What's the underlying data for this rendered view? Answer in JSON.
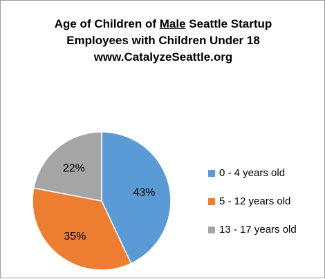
{
  "chart": {
    "title_line1_pre": "Age of Children of ",
    "title_line1_u": "Male",
    "title_line1_post": " Seattle Startup",
    "title_line2": "Employees with Children Under 18",
    "title_line3": "www.CatalyzeSeattle.org"
  },
  "chart_data": {
    "type": "pie",
    "title": "Age of Children of Male Seattle Startup Employees with Children Under 18 www.CatalyzeSeattle.org",
    "categories": [
      "0 - 4 years old",
      "5 - 12 years old",
      "13 - 17 years old"
    ],
    "values": [
      43,
      35,
      22
    ],
    "data_labels": [
      "43%",
      "35%",
      "22%"
    ],
    "colors": [
      "#5b9bd5",
      "#ed7d31",
      "#a5a5a5"
    ],
    "legend": "right",
    "start": "top, clockwise"
  }
}
